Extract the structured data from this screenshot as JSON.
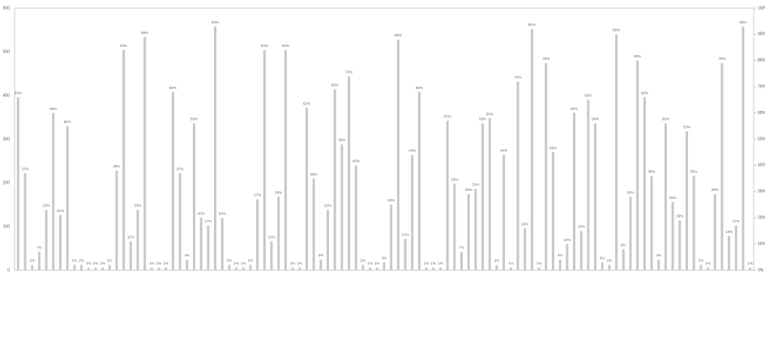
{
  "chart_data": {
    "type": "bar",
    "ylim": [
      0,
      600
    ],
    "yticks": [
      0,
      100,
      200,
      300,
      400,
      500,
      600
    ],
    "y2lim": [
      0,
      100
    ],
    "y2ticks": [
      {
        "value": 0,
        "label": "0%"
      },
      {
        "value": 10,
        "label": "10%"
      },
      {
        "value": 20,
        "label": "20%"
      },
      {
        "value": 30,
        "label": "30%"
      },
      {
        "value": 40,
        "label": "40%"
      },
      {
        "value": 50,
        "label": "50%"
      },
      {
        "value": 60,
        "label": "60%"
      },
      {
        "value": 70,
        "label": "70%"
      },
      {
        "value": 80,
        "label": "80%"
      },
      {
        "value": 90,
        "label": "90%"
      },
      {
        "value": 100,
        "label": "100%"
      }
    ],
    "series": [
      {
        "color": "#c8c8c8",
        "axis": "y2",
        "values": [
          66,
          37,
          2,
          7,
          23,
          60,
          21,
          55,
          2,
          2,
          1,
          1,
          1,
          2,
          38,
          84,
          11,
          23,
          89,
          1,
          1,
          1,
          68,
          37,
          4,
          56,
          20,
          17,
          93,
          20,
          2,
          1,
          1,
          2,
          27,
          84,
          11,
          28,
          84,
          1,
          1,
          62,
          35,
          4,
          23,
          69,
          48,
          74,
          40,
          2,
          1,
          1,
          3,
          25,
          88,
          12,
          44,
          68,
          1,
          1,
          1,
          57,
          33,
          7,
          29,
          31,
          56,
          58,
          2,
          44,
          1,
          72,
          16,
          92,
          1,
          79,
          45,
          4,
          10,
          60,
          15,
          65,
          56,
          3,
          2,
          90,
          8,
          28,
          80,
          66,
          36,
          4,
          56,
          26,
          19,
          53,
          36,
          2,
          1,
          29,
          79,
          13,
          17,
          93,
          1
        ],
        "value_labels": [
          "66%",
          "37%",
          "2%",
          "7%",
          "23%",
          "60%",
          "21%",
          "55%",
          "2%",
          "2%",
          "1%",
          "1%",
          "1%",
          "2%",
          "38%",
          "84%",
          "11%",
          "23%",
          "89%",
          "1%",
          "1%",
          "1%",
          "68%",
          "37%",
          "4%",
          "56%",
          "20%",
          "17%",
          "93%",
          "20%",
          "2%",
          "1%",
          "1%",
          "2%",
          "27%",
          "84%",
          "11%",
          "28%",
          "84%",
          "1%",
          "1%",
          "62%",
          "35%",
          "4%",
          "23%",
          "69%",
          "48%",
          "74%",
          "40%",
          "2%",
          "1%",
          "1%",
          "3%",
          "25%",
          "88%",
          "12%",
          "44%",
          "68%",
          "1%",
          "1%",
          "1%",
          "57%",
          "33%",
          "7%",
          "29%",
          "31%",
          "56%",
          "58%",
          "2%",
          "44%",
          "1%",
          "72%",
          "16%",
          "92%",
          "1%",
          "79%",
          "45%",
          "4%",
          "10%",
          "60%",
          "15%",
          "65%",
          "56%",
          "3%",
          "2%",
          "90%",
          "8%",
          "28%",
          "80%",
          "66%",
          "36%",
          "4%",
          "56%",
          "26%",
          "19%",
          "53%",
          "36%",
          "2%",
          "1%",
          "29%",
          "79%",
          "13%",
          "17%",
          "93%",
          "1%"
        ]
      }
    ]
  }
}
